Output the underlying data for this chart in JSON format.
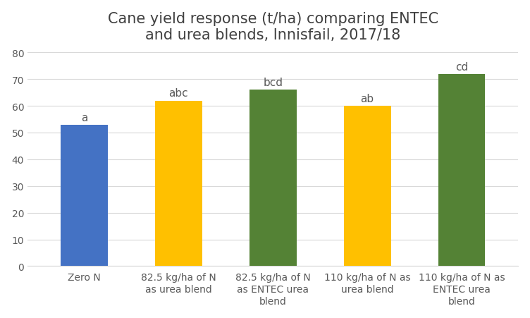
{
  "title": "Cane yield response (t/ha) comparing ENTEC\nand urea blends, Innisfail, 2017/18",
  "categories": [
    "Zero N",
    "82.5 kg/ha of N\nas urea blend",
    "82.5 kg/ha of N\nas ENTEC urea\nblend",
    "110 kg/ha of N as\nurea blend",
    "110 kg/ha of N as\nENTEC urea\nblend"
  ],
  "values": [
    53,
    62,
    66,
    60,
    72
  ],
  "bar_colors": [
    "#4472C4",
    "#FFC000",
    "#548235",
    "#FFC000",
    "#548235"
  ],
  "significance_labels": [
    "a",
    "abc",
    "bcd",
    "ab",
    "cd"
  ],
  "ylim": [
    0,
    80
  ],
  "yticks": [
    0,
    10,
    20,
    30,
    40,
    50,
    60,
    70,
    80
  ],
  "title_fontsize": 15,
  "tick_fontsize": 10,
  "sig_fontsize": 11,
  "background_color": "#ffffff",
  "grid_color": "#d9d9d9",
  "bar_width": 0.5
}
